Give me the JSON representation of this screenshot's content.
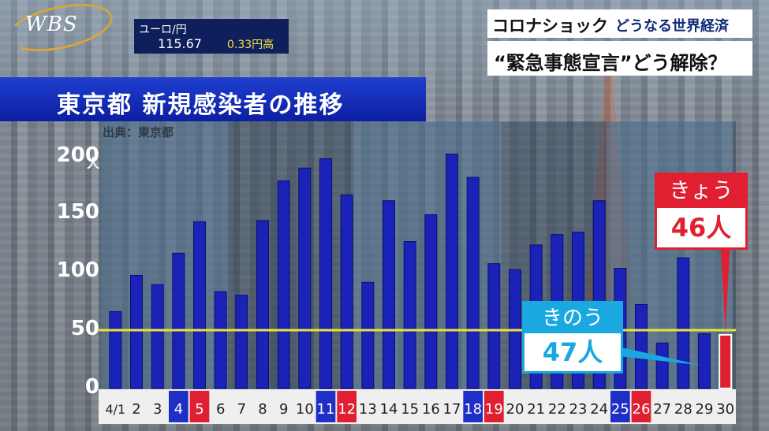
{
  "broadcast": {
    "logo": "WBS",
    "ticker_label": "ユーロ/円",
    "ticker_value": "115.67",
    "ticker_change": "0.33円高",
    "topic_main": "コロナショック",
    "topic_sub": "どうなる世界経済",
    "headline": "“緊急事態宣言”どう解除？"
  },
  "colors": {
    "bar_blue": "#1a22b8",
    "bar_red": "#e02030",
    "ref_line": "#e8e23a",
    "weekend_blue": "#1e2fc8",
    "weekend_red": "#e02030"
  },
  "chart_data": {
    "type": "bar",
    "title": "東京都 新規感染者の推移",
    "source": "出典：東京都",
    "unit": "人",
    "ylim": [
      0,
      210
    ],
    "yticks": [
      "0",
      "50",
      "100",
      "150",
      "200"
    ],
    "reference_line": 50,
    "categories": [
      "4/1",
      "2",
      "3",
      "4",
      "5",
      "6",
      "7",
      "8",
      "9",
      "10",
      "11",
      "12",
      "13",
      "14",
      "15",
      "16",
      "17",
      "18",
      "19",
      "20",
      "21",
      "22",
      "23",
      "24",
      "25",
      "26",
      "27",
      "28",
      "29",
      "30"
    ],
    "values": [
      66,
      97,
      89,
      116,
      143,
      83,
      80,
      144,
      178,
      189,
      197,
      166,
      91,
      161,
      126,
      149,
      201,
      181,
      107,
      102,
      123,
      132,
      134,
      161,
      103,
      72,
      39,
      112,
      47,
      46
    ],
    "label_styles": [
      "plain",
      "plain",
      "plain",
      "blue",
      "red",
      "plain",
      "plain",
      "plain",
      "plain",
      "plain",
      "blue",
      "red",
      "plain",
      "plain",
      "plain",
      "plain",
      "plain",
      "blue",
      "red",
      "plain",
      "plain",
      "plain",
      "plain",
      "plain",
      "blue",
      "red",
      "plain",
      "plain",
      "plain",
      "plain"
    ],
    "highlight_index": 29,
    "callout_yesterday": {
      "label": "きのう",
      "value": "47人"
    },
    "callout_today": {
      "label": "きょう",
      "value": "46人"
    }
  }
}
